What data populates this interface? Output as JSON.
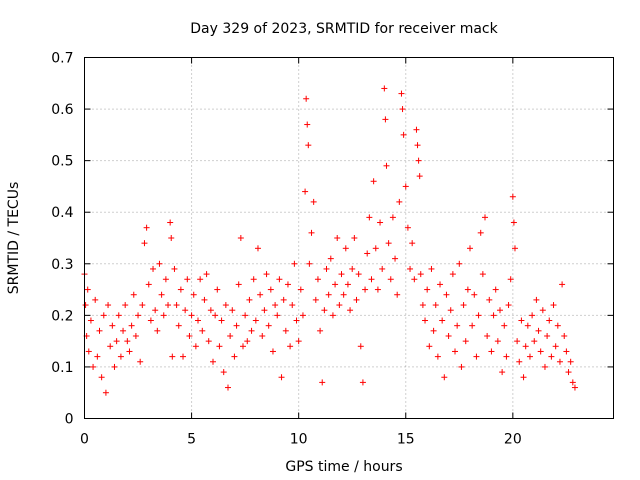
{
  "chart_data": {
    "type": "scatter",
    "title": "Day 329 of 2023, SRMTID for receiver mack",
    "xlabel": "GPS time / hours",
    "ylabel": "SRMTID / TECUs",
    "xlim": [
      0,
      24.7
    ],
    "ylim": [
      0,
      0.7
    ],
    "x_ticks": [
      0,
      5,
      10,
      15,
      20
    ],
    "x_tick_labels": [
      "0",
      "5",
      "10",
      "15",
      "20"
    ],
    "y_ticks": [
      0,
      0.1,
      0.2,
      0.3,
      0.4,
      0.5,
      0.6,
      0.7
    ],
    "y_tick_labels": [
      "0",
      "0.1",
      "0.2",
      "0.3",
      "0.4",
      "0.5",
      "0.6",
      "0.7"
    ],
    "grid": true,
    "marker": "+",
    "series": [
      {
        "name": "SRMTID",
        "color": "#ff0000",
        "points": [
          [
            0.0,
            0.28
          ],
          [
            0.05,
            0.22
          ],
          [
            0.1,
            0.16
          ],
          [
            0.15,
            0.25
          ],
          [
            0.2,
            0.13
          ],
          [
            0.3,
            0.19
          ],
          [
            0.4,
            0.1
          ],
          [
            0.5,
            0.23
          ],
          [
            0.6,
            0.12
          ],
          [
            0.7,
            0.17
          ],
          [
            0.8,
            0.08
          ],
          [
            0.9,
            0.2
          ],
          [
            1.0,
            0.05
          ],
          [
            1.1,
            0.22
          ],
          [
            1.2,
            0.14
          ],
          [
            1.3,
            0.18
          ],
          [
            1.4,
            0.1
          ],
          [
            1.5,
            0.15
          ],
          [
            1.6,
            0.2
          ],
          [
            1.7,
            0.12
          ],
          [
            1.8,
            0.17
          ],
          [
            1.9,
            0.22
          ],
          [
            2.0,
            0.15
          ],
          [
            2.1,
            0.13
          ],
          [
            2.2,
            0.18
          ],
          [
            2.3,
            0.24
          ],
          [
            2.4,
            0.16
          ],
          [
            2.5,
            0.2
          ],
          [
            2.6,
            0.11
          ],
          [
            2.7,
            0.22
          ],
          [
            2.8,
            0.34
          ],
          [
            2.9,
            0.37
          ],
          [
            3.0,
            0.26
          ],
          [
            3.1,
            0.19
          ],
          [
            3.2,
            0.29
          ],
          [
            3.3,
            0.21
          ],
          [
            3.4,
            0.17
          ],
          [
            3.5,
            0.3
          ],
          [
            3.6,
            0.24
          ],
          [
            3.7,
            0.2
          ],
          [
            3.8,
            0.27
          ],
          [
            3.9,
            0.22
          ],
          [
            4.0,
            0.38
          ],
          [
            4.05,
            0.35
          ],
          [
            4.1,
            0.12
          ],
          [
            4.2,
            0.29
          ],
          [
            4.3,
            0.22
          ],
          [
            4.4,
            0.18
          ],
          [
            4.5,
            0.25
          ],
          [
            4.6,
            0.12
          ],
          [
            4.7,
            0.21
          ],
          [
            4.8,
            0.27
          ],
          [
            4.9,
            0.16
          ],
          [
            5.0,
            0.2
          ],
          [
            5.1,
            0.24
          ],
          [
            5.2,
            0.14
          ],
          [
            5.3,
            0.19
          ],
          [
            5.4,
            0.27
          ],
          [
            5.5,
            0.17
          ],
          [
            5.6,
            0.23
          ],
          [
            5.7,
            0.28
          ],
          [
            5.8,
            0.15
          ],
          [
            5.9,
            0.21
          ],
          [
            6.0,
            0.11
          ],
          [
            6.1,
            0.2
          ],
          [
            6.2,
            0.25
          ],
          [
            6.3,
            0.14
          ],
          [
            6.4,
            0.19
          ],
          [
            6.5,
            0.09
          ],
          [
            6.6,
            0.22
          ],
          [
            6.7,
            0.06
          ],
          [
            6.8,
            0.16
          ],
          [
            6.9,
            0.21
          ],
          [
            7.0,
            0.12
          ],
          [
            7.1,
            0.18
          ],
          [
            7.2,
            0.26
          ],
          [
            7.3,
            0.35
          ],
          [
            7.4,
            0.14
          ],
          [
            7.5,
            0.2
          ],
          [
            7.6,
            0.15
          ],
          [
            7.7,
            0.23
          ],
          [
            7.8,
            0.17
          ],
          [
            7.9,
            0.27
          ],
          [
            8.0,
            0.19
          ],
          [
            8.1,
            0.33
          ],
          [
            8.2,
            0.24
          ],
          [
            8.3,
            0.16
          ],
          [
            8.4,
            0.21
          ],
          [
            8.5,
            0.28
          ],
          [
            8.6,
            0.18
          ],
          [
            8.7,
            0.25
          ],
          [
            8.8,
            0.13
          ],
          [
            8.9,
            0.22
          ],
          [
            9.0,
            0.2
          ],
          [
            9.1,
            0.27
          ],
          [
            9.2,
            0.08
          ],
          [
            9.3,
            0.23
          ],
          [
            9.4,
            0.17
          ],
          [
            9.5,
            0.26
          ],
          [
            9.6,
            0.14
          ],
          [
            9.7,
            0.22
          ],
          [
            9.8,
            0.3
          ],
          [
            9.9,
            0.19
          ],
          [
            10.0,
            0.15
          ],
          [
            10.1,
            0.25
          ],
          [
            10.2,
            0.2
          ],
          [
            10.3,
            0.44
          ],
          [
            10.35,
            0.62
          ],
          [
            10.4,
            0.57
          ],
          [
            10.45,
            0.53
          ],
          [
            10.5,
            0.3
          ],
          [
            10.6,
            0.36
          ],
          [
            10.7,
            0.42
          ],
          [
            10.8,
            0.23
          ],
          [
            10.9,
            0.27
          ],
          [
            11.0,
            0.17
          ],
          [
            11.1,
            0.07
          ],
          [
            11.2,
            0.21
          ],
          [
            11.3,
            0.29
          ],
          [
            11.4,
            0.24
          ],
          [
            11.5,
            0.31
          ],
          [
            11.6,
            0.2
          ],
          [
            11.7,
            0.26
          ],
          [
            11.8,
            0.35
          ],
          [
            11.9,
            0.22
          ],
          [
            12.0,
            0.28
          ],
          [
            12.1,
            0.24
          ],
          [
            12.2,
            0.33
          ],
          [
            12.3,
            0.26
          ],
          [
            12.4,
            0.21
          ],
          [
            12.5,
            0.29
          ],
          [
            12.6,
            0.35
          ],
          [
            12.7,
            0.23
          ],
          [
            12.8,
            0.28
          ],
          [
            12.9,
            0.14
          ],
          [
            13.0,
            0.07
          ],
          [
            13.1,
            0.25
          ],
          [
            13.2,
            0.32
          ],
          [
            13.3,
            0.39
          ],
          [
            13.4,
            0.27
          ],
          [
            13.5,
            0.46
          ],
          [
            13.6,
            0.33
          ],
          [
            13.7,
            0.25
          ],
          [
            13.8,
            0.38
          ],
          [
            13.9,
            0.29
          ],
          [
            14.0,
            0.64
          ],
          [
            14.05,
            0.58
          ],
          [
            14.1,
            0.49
          ],
          [
            14.2,
            0.34
          ],
          [
            14.3,
            0.27
          ],
          [
            14.4,
            0.39
          ],
          [
            14.5,
            0.31
          ],
          [
            14.6,
            0.24
          ],
          [
            14.7,
            0.42
          ],
          [
            14.8,
            0.63
          ],
          [
            14.85,
            0.6
          ],
          [
            14.9,
            0.55
          ],
          [
            15.0,
            0.45
          ],
          [
            15.1,
            0.37
          ],
          [
            15.2,
            0.29
          ],
          [
            15.3,
            0.34
          ],
          [
            15.4,
            0.27
          ],
          [
            15.5,
            0.56
          ],
          [
            15.55,
            0.53
          ],
          [
            15.6,
            0.5
          ],
          [
            15.65,
            0.47
          ],
          [
            15.7,
            0.28
          ],
          [
            15.8,
            0.22
          ],
          [
            15.9,
            0.19
          ],
          [
            16.0,
            0.25
          ],
          [
            16.1,
            0.14
          ],
          [
            16.2,
            0.29
          ],
          [
            16.3,
            0.17
          ],
          [
            16.4,
            0.22
          ],
          [
            16.5,
            0.12
          ],
          [
            16.6,
            0.26
          ],
          [
            16.7,
            0.19
          ],
          [
            16.8,
            0.08
          ],
          [
            16.9,
            0.24
          ],
          [
            17.0,
            0.16
          ],
          [
            17.1,
            0.21
          ],
          [
            17.2,
            0.28
          ],
          [
            17.3,
            0.13
          ],
          [
            17.4,
            0.18
          ],
          [
            17.5,
            0.3
          ],
          [
            17.6,
            0.1
          ],
          [
            17.7,
            0.22
          ],
          [
            17.8,
            0.15
          ],
          [
            17.9,
            0.25
          ],
          [
            18.0,
            0.33
          ],
          [
            18.1,
            0.18
          ],
          [
            18.2,
            0.24
          ],
          [
            18.3,
            0.12
          ],
          [
            18.4,
            0.2
          ],
          [
            18.5,
            0.36
          ],
          [
            18.6,
            0.28
          ],
          [
            18.7,
            0.39
          ],
          [
            18.8,
            0.16
          ],
          [
            18.9,
            0.23
          ],
          [
            19.0,
            0.13
          ],
          [
            19.1,
            0.2
          ],
          [
            19.2,
            0.25
          ],
          [
            19.3,
            0.15
          ],
          [
            19.4,
            0.21
          ],
          [
            19.5,
            0.09
          ],
          [
            19.6,
            0.18
          ],
          [
            19.7,
            0.12
          ],
          [
            19.8,
            0.22
          ],
          [
            19.9,
            0.27
          ],
          [
            20.0,
            0.43
          ],
          [
            20.05,
            0.38
          ],
          [
            20.1,
            0.33
          ],
          [
            20.2,
            0.15
          ],
          [
            20.3,
            0.11
          ],
          [
            20.4,
            0.19
          ],
          [
            20.5,
            0.08
          ],
          [
            20.6,
            0.14
          ],
          [
            20.7,
            0.18
          ],
          [
            20.8,
            0.12
          ],
          [
            20.9,
            0.2
          ],
          [
            21.0,
            0.15
          ],
          [
            21.1,
            0.23
          ],
          [
            21.2,
            0.17
          ],
          [
            21.3,
            0.13
          ],
          [
            21.4,
            0.21
          ],
          [
            21.5,
            0.1
          ],
          [
            21.6,
            0.16
          ],
          [
            21.7,
            0.19
          ],
          [
            21.8,
            0.12
          ],
          [
            21.9,
            0.22
          ],
          [
            22.0,
            0.14
          ],
          [
            22.1,
            0.18
          ],
          [
            22.2,
            0.11
          ],
          [
            22.3,
            0.26
          ],
          [
            22.4,
            0.16
          ],
          [
            22.5,
            0.13
          ],
          [
            22.6,
            0.09
          ],
          [
            22.7,
            0.11
          ],
          [
            22.8,
            0.07
          ],
          [
            22.9,
            0.06
          ]
        ]
      }
    ]
  }
}
